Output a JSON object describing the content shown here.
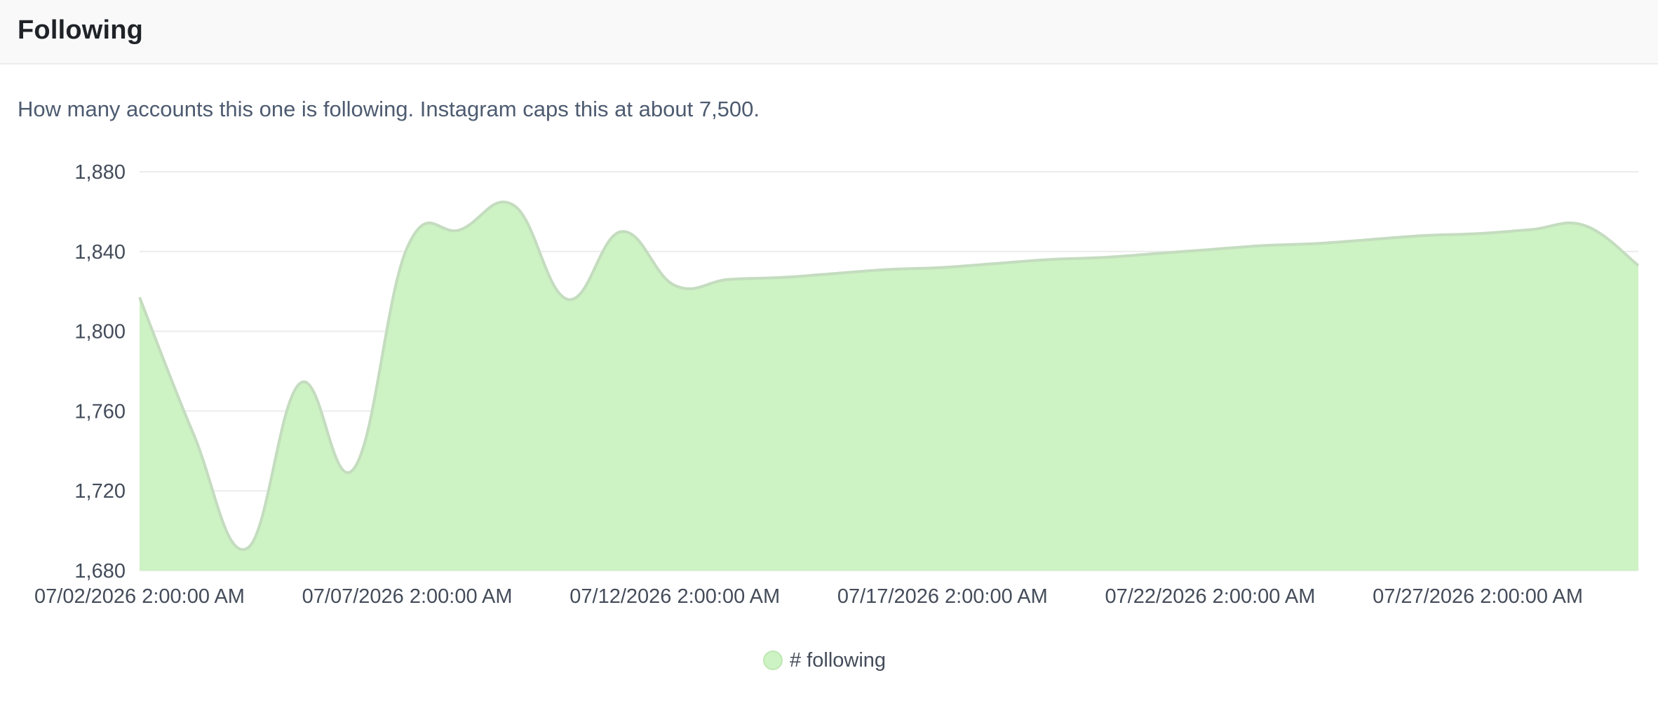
{
  "panel": {
    "title": "Following",
    "description": "How many accounts this one is following. Instagram caps this at about 7,500."
  },
  "colors": {
    "area_fill": "#cdf2c3",
    "area_stroke": "#c4dcbf",
    "grid": "#ececec",
    "text": "#444c5a"
  },
  "chart_data": {
    "type": "area",
    "title": "",
    "xlabel": "",
    "ylabel": "",
    "ylim": [
      1680,
      1880
    ],
    "yticks": [
      1680,
      1720,
      1760,
      1800,
      1840,
      1880
    ],
    "ytick_labels": [
      "1,680",
      "1,720",
      "1,760",
      "1,800",
      "1,840",
      "1,880"
    ],
    "xtick_labels": [
      "07/02/2026 2:00:00 AM",
      "07/07/2026 2:00:00 AM",
      "07/12/2026 2:00:00 AM",
      "07/17/2026 2:00:00 AM",
      "07/22/2026 2:00:00 AM",
      "07/27/2026 2:00:00 AM"
    ],
    "x": [
      "2026-07-02",
      "2026-07-03",
      "2026-07-04",
      "2026-07-05",
      "2026-07-06",
      "2026-07-07",
      "2026-07-08",
      "2026-07-09",
      "2026-07-10",
      "2026-07-11",
      "2026-07-12",
      "2026-07-13",
      "2026-07-14",
      "2026-07-15",
      "2026-07-16",
      "2026-07-17",
      "2026-07-18",
      "2026-07-19",
      "2026-07-20",
      "2026-07-21",
      "2026-07-22",
      "2026-07-23",
      "2026-07-24",
      "2026-07-25",
      "2026-07-26",
      "2026-07-27",
      "2026-07-28",
      "2026-07-29",
      "2026-07-30"
    ],
    "series": [
      {
        "name": "# following",
        "values": [
          1817,
          1749,
          1691,
          1774,
          1731,
          1842,
          1851,
          1863,
          1816,
          1850,
          1823,
          1826,
          1827,
          1829,
          1831,
          1832,
          1834,
          1836,
          1837,
          1839,
          1841,
          1843,
          1844,
          1846,
          1848,
          1849,
          1851,
          1853,
          1833
        ]
      }
    ],
    "grid": true,
    "legend": "bottom-center"
  }
}
